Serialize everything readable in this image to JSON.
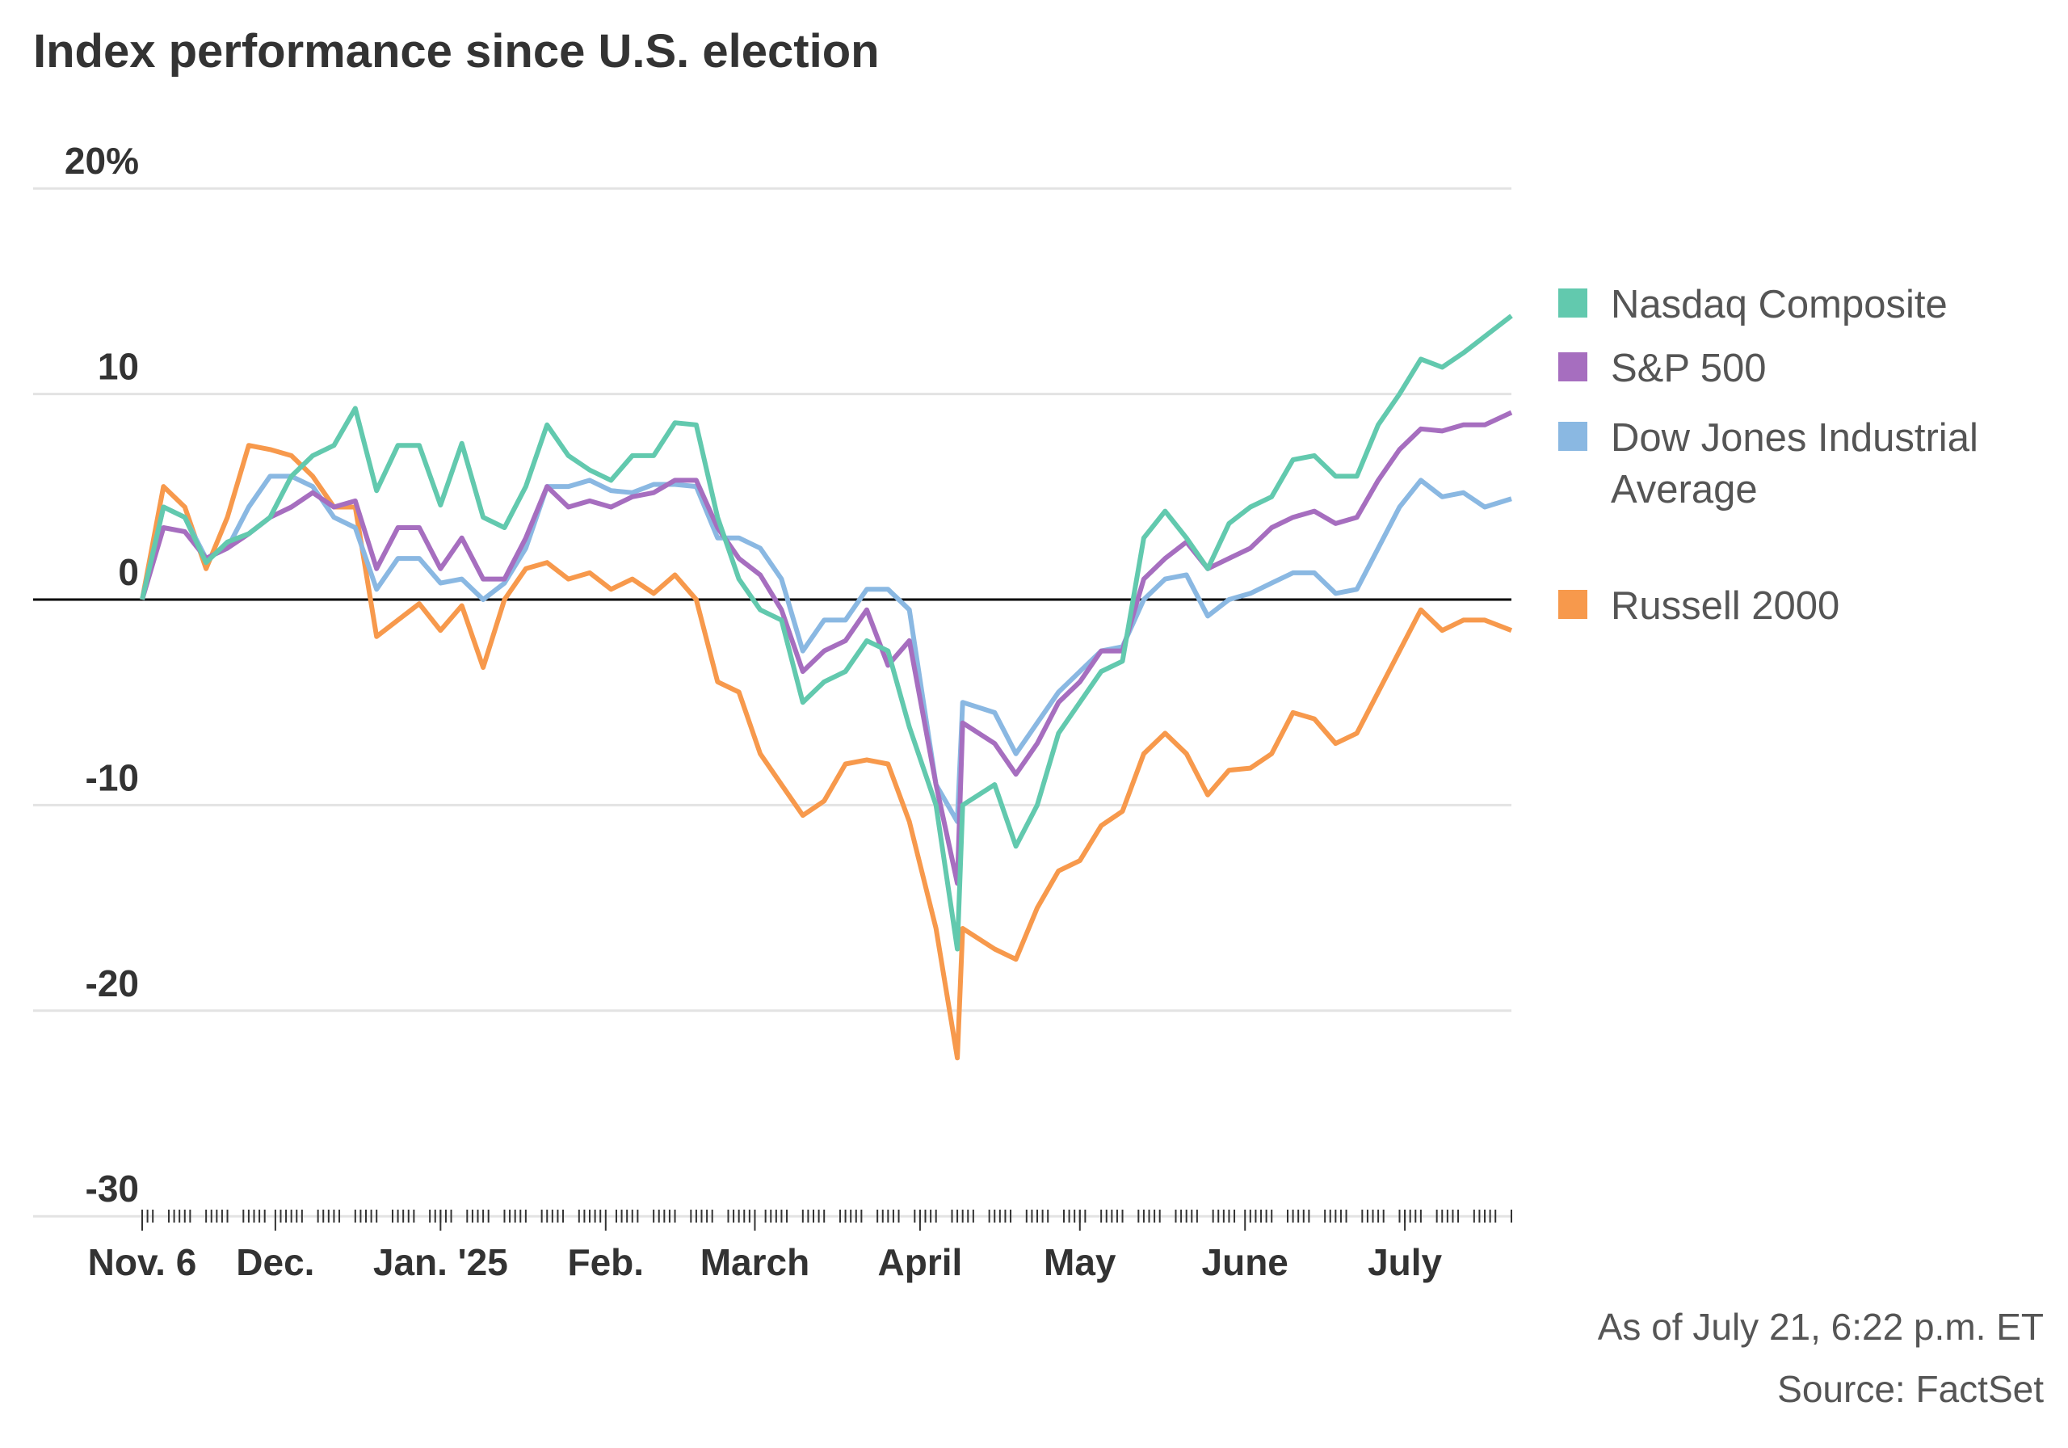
{
  "chart_data": {
    "type": "line",
    "title": "Index performance since U.S. election",
    "ylim": [
      -30,
      20
    ],
    "y_ticks": [
      20,
      10,
      0,
      -10,
      -20,
      -30
    ],
    "y_tick_labels": [
      "20%",
      "10",
      "0",
      "-10",
      "-20",
      "-30"
    ],
    "x_range": [
      "2024-11-06",
      "2025-07-21"
    ],
    "x_ticks": [
      {
        "date": "2024-11-06",
        "label": "Nov. 6"
      },
      {
        "date": "2024-12-01",
        "label": "Dec."
      },
      {
        "date": "2025-01-01",
        "label": "Jan. '25"
      },
      {
        "date": "2025-02-01",
        "label": "Feb."
      },
      {
        "date": "2025-03-01",
        "label": "March"
      },
      {
        "date": "2025-04-01",
        "label": "April"
      },
      {
        "date": "2025-05-01",
        "label": "May"
      },
      {
        "date": "2025-06-01",
        "label": "June"
      },
      {
        "date": "2025-07-01",
        "label": "July"
      }
    ],
    "grid": true,
    "legend": "right",
    "x": [
      "2024-11-06",
      "2024-11-10",
      "2024-11-14",
      "2024-11-18",
      "2024-11-22",
      "2024-11-26",
      "2024-11-30",
      "2024-12-04",
      "2024-12-08",
      "2024-12-12",
      "2024-12-16",
      "2024-12-20",
      "2024-12-24",
      "2024-12-28",
      "2025-01-01",
      "2025-01-05",
      "2025-01-09",
      "2025-01-13",
      "2025-01-17",
      "2025-01-21",
      "2025-01-25",
      "2025-01-29",
      "2025-02-02",
      "2025-02-06",
      "2025-02-10",
      "2025-02-14",
      "2025-02-18",
      "2025-02-22",
      "2025-02-26",
      "2025-03-02",
      "2025-03-06",
      "2025-03-10",
      "2025-03-14",
      "2025-03-18",
      "2025-03-22",
      "2025-03-26",
      "2025-03-30",
      "2025-04-04",
      "2025-04-08",
      "2025-04-09",
      "2025-04-15",
      "2025-04-19",
      "2025-04-23",
      "2025-04-27",
      "2025-05-01",
      "2025-05-05",
      "2025-05-09",
      "2025-05-13",
      "2025-05-17",
      "2025-05-21",
      "2025-05-25",
      "2025-05-29",
      "2025-06-02",
      "2025-06-06",
      "2025-06-10",
      "2025-06-14",
      "2025-06-18",
      "2025-06-22",
      "2025-06-26",
      "2025-06-30",
      "2025-07-04",
      "2025-07-08",
      "2025-07-12",
      "2025-07-16",
      "2025-07-21"
    ],
    "series": [
      {
        "name": "Nasdaq Composite",
        "color": "#62c9ae",
        "values": [
          0,
          4.5,
          4,
          1.8,
          2.8,
          3.2,
          4,
          6,
          7,
          7.5,
          9.3,
          5.3,
          7.5,
          7.5,
          4.6,
          7.6,
          4,
          3.5,
          5.5,
          8.5,
          7,
          6.3,
          5.8,
          7,
          7,
          8.6,
          8.5,
          4,
          1,
          -0.5,
          -1,
          -5,
          -4,
          -3.5,
          -2,
          -2.5,
          -6.2,
          -10,
          -17,
          -10,
          -9,
          -12,
          -10,
          -6.5,
          -5,
          -3.5,
          -3,
          3,
          4.3,
          3,
          1.5,
          3.7,
          4.5,
          5,
          6.8,
          7,
          6,
          6,
          8.5,
          10,
          11.7,
          11.3,
          12,
          12.8,
          13.8
        ]
      },
      {
        "name": "S&P 500",
        "color": "#a66ebf",
        "values": [
          0,
          3.5,
          3.3,
          2,
          2.5,
          3.2,
          4,
          4.5,
          5.2,
          4.5,
          4.8,
          1.5,
          3.5,
          3.5,
          1.5,
          3,
          1,
          1,
          3,
          5.5,
          4.5,
          4.8,
          4.5,
          5,
          5.2,
          5.8,
          5.8,
          3.5,
          2,
          1.2,
          -0.5,
          -3.5,
          -2.5,
          -2,
          -0.5,
          -3.2,
          -2,
          -9,
          -13.8,
          -6,
          -7,
          -8.5,
          -7,
          -5,
          -4,
          -2.5,
          -2.5,
          1,
          2,
          2.8,
          1.5,
          2,
          2.5,
          3.5,
          4,
          4.3,
          3.7,
          4,
          5.8,
          7.3,
          8.3,
          8.2,
          8.5,
          8.5,
          9.1
        ]
      },
      {
        "name": "Dow Jones Industrial Average",
        "color": "#8ab8e2",
        "values": [
          0,
          4.5,
          4,
          2,
          2.5,
          4.5,
          6,
          6,
          5.5,
          4,
          3.5,
          0.5,
          2,
          2,
          0.8,
          1,
          0,
          0.8,
          2.5,
          5.5,
          5.5,
          5.8,
          5.3,
          5.2,
          5.6,
          5.6,
          5.5,
          3,
          3,
          2.5,
          1,
          -2.5,
          -1,
          -1,
          0.5,
          0.5,
          -0.5,
          -9,
          -10.8,
          -5,
          -5.5,
          -7.5,
          -6,
          -4.5,
          -3.5,
          -2.5,
          -2.3,
          0,
          1,
          1.2,
          -0.8,
          0,
          0.3,
          0.8,
          1.3,
          1.3,
          0.3,
          0.5,
          2.5,
          4.5,
          5.8,
          5,
          5.2,
          4.5,
          4.9
        ]
      },
      {
        "name": "Russell 2000",
        "color": "#f7994c",
        "values": [
          0,
          5.5,
          4.5,
          1.5,
          4,
          7.5,
          7.3,
          7,
          6,
          4.5,
          4.5,
          -1.8,
          -1,
          -0.2,
          -1.5,
          -0.3,
          -3.3,
          0,
          1.5,
          1.8,
          1,
          1.3,
          0.5,
          1,
          0.3,
          1.2,
          0,
          -4,
          -4.5,
          -7.5,
          -9,
          -10.5,
          -9.8,
          -8,
          -7.8,
          -8,
          -10.8,
          -16,
          -22.3,
          -16,
          -17,
          -17.5,
          -15,
          -13.2,
          -12.7,
          -11,
          -10.3,
          -7.5,
          -6.5,
          -7.5,
          -9.5,
          -8.3,
          -8.2,
          -7.5,
          -5.5,
          -5.8,
          -7,
          -6.5,
          -4.5,
          -2.5,
          -0.5,
          -1.5,
          -1,
          -1,
          -1.5
        ]
      }
    ]
  },
  "legend": {
    "items": [
      {
        "label": "Nasdaq Composite",
        "color": "#62c9ae"
      },
      {
        "label": "S&P 500",
        "color": "#a66ebf"
      },
      {
        "label": "Dow Jones Industrial Average",
        "color": "#8ab8e2"
      },
      {
        "label": "Russell 2000",
        "color": "#f7994c"
      }
    ]
  },
  "footer": {
    "as_of": "As of July 21, 6:22 p.m. ET",
    "source": "Source: FactSet"
  }
}
